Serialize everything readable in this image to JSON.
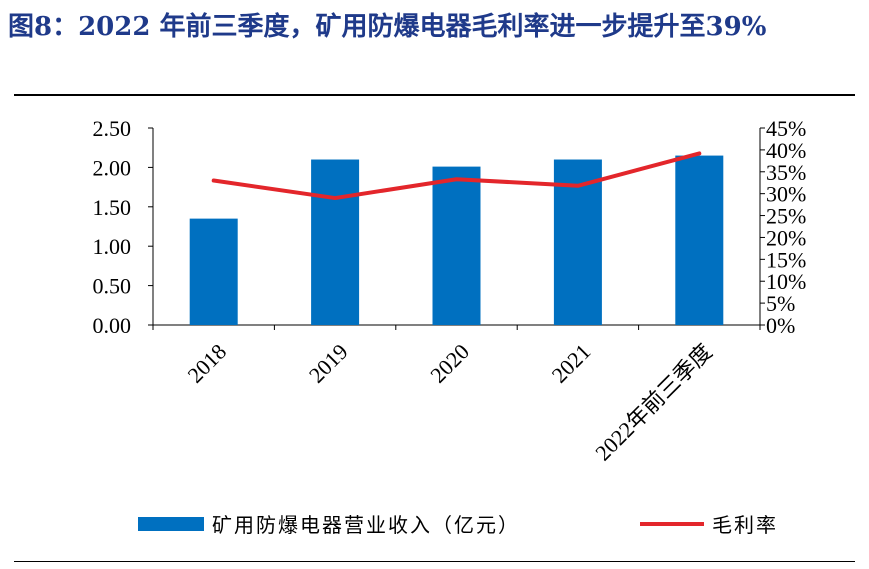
{
  "title": "图8：2022 年前三季度，矿用防爆电器毛利率进一步提升至39%",
  "chart_data": {
    "type": "bar",
    "categories": [
      "2018",
      "2019",
      "2020",
      "2021",
      "2022年前三季度"
    ],
    "series": [
      {
        "name": "矿用防爆电器营业收入（亿元）",
        "type": "bar",
        "axis": "left",
        "values": [
          1.35,
          2.1,
          2.01,
          2.1,
          2.15
        ],
        "color": "#0070c0"
      },
      {
        "name": "毛利率",
        "type": "line",
        "axis": "right",
        "values": [
          33,
          29,
          33.3,
          31.8,
          39.2
        ],
        "color": "#e3262b"
      }
    ],
    "y_left": {
      "ylim": [
        0,
        2.5
      ],
      "ticks": [
        "0.00",
        "0.50",
        "1.00",
        "1.50",
        "2.00",
        "2.50"
      ]
    },
    "y_right": {
      "ylim": [
        0,
        45
      ],
      "ticks": [
        "0%",
        "5%",
        "10%",
        "15%",
        "20%",
        "25%",
        "30%",
        "35%",
        "40%",
        "45%"
      ]
    },
    "legend_position": "bottom",
    "grid": false
  }
}
